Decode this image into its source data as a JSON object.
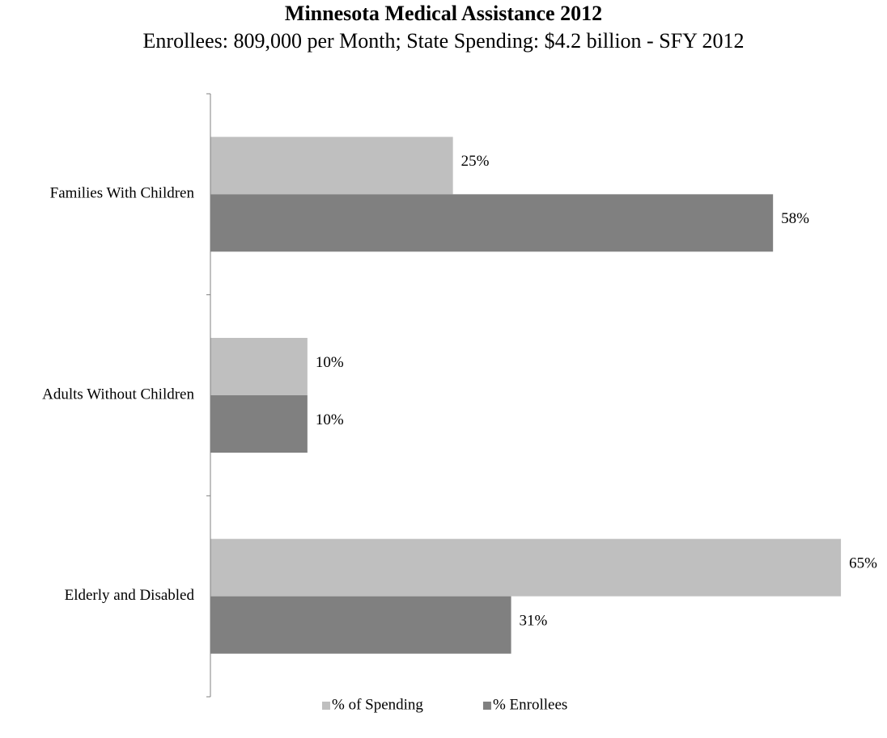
{
  "chart_data": {
    "type": "hbar",
    "title": "Minnesota Medical Assistance 2012",
    "subtitle": "Enrollees: 809,000 per Month; State Spending: $4.2 billion - SFY 2012",
    "categories": [
      "Families With Children",
      "Adults Without Children",
      "Elderly and Disabled"
    ],
    "series": [
      {
        "name": "% of Spending",
        "color": "#bfbfbf",
        "values": [
          25,
          10,
          65
        ],
        "value_labels": [
          "25%",
          "10%",
          "65%"
        ]
      },
      {
        "name": "% Enrollees",
        "color": "#808080",
        "values": [
          58,
          10,
          31
        ],
        "value_labels": [
          "58%",
          "10%",
          "31%"
        ]
      }
    ],
    "xlim": [
      0,
      70
    ],
    "legend": "bottom"
  }
}
